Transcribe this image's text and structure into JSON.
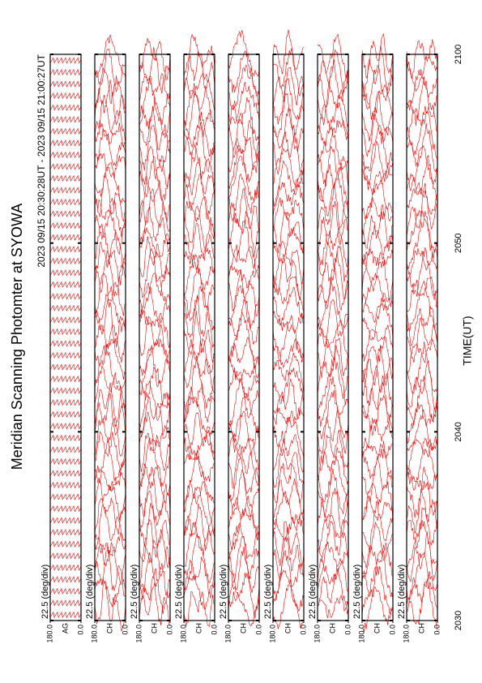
{
  "chart_data": {
    "type": "stacked-trace",
    "title": "Meridian Scanning Photomter at SYOWA",
    "subtitle": "2023 09/15 20:30:28UT - 2023 09/15 21:00:27UT",
    "x_label": "TIME(UT)",
    "xlim": [
      30,
      60
    ],
    "xticks": [
      {
        "value": 30,
        "label": "2030"
      },
      {
        "value": 40,
        "label": "2040"
      },
      {
        "value": 50,
        "label": "2050"
      },
      {
        "value": 60,
        "label": "2100"
      }
    ],
    "color": "#ff0000",
    "panels": [
      {
        "channel": "AG",
        "scale": "22.5 (deg/div)",
        "ylim": [
          0,
          180
        ],
        "yticks": [
          {
            "value": 0,
            "label": "0.0"
          },
          {
            "value": 180,
            "label": "180.0"
          }
        ]
      },
      {
        "channel": "CH",
        "scale": "22.5 (deg/div)",
        "ylim": [
          0,
          180
        ],
        "yticks": [
          {
            "value": 0,
            "label": "0.0"
          },
          {
            "value": 180,
            "label": "180.0"
          }
        ]
      },
      {
        "channel": "CH",
        "scale": "22.5 (deg/div)",
        "ylim": [
          0,
          180
        ],
        "yticks": [
          {
            "value": 0,
            "label": "0.0"
          },
          {
            "value": 180,
            "label": "180.0"
          }
        ]
      },
      {
        "channel": "CH",
        "scale": "22.5 (deg/div)",
        "ylim": [
          0,
          180
        ],
        "yticks": [
          {
            "value": 0,
            "label": "0.0"
          },
          {
            "value": 180,
            "label": "180.0"
          }
        ]
      },
      {
        "channel": "CH",
        "scale": "22.5 (deg/div)",
        "ylim": [
          0,
          180
        ],
        "yticks": [
          {
            "value": 0,
            "label": "0.0"
          },
          {
            "value": 180,
            "label": "180.0"
          }
        ]
      },
      {
        "channel": "CH",
        "scale": "22.5 (deg/div)",
        "ylim": [
          0,
          180
        ],
        "yticks": [
          {
            "value": 0,
            "label": "0.0"
          },
          {
            "value": 180,
            "label": "180.0"
          }
        ]
      },
      {
        "channel": "CH",
        "scale": "22.5 (deg/div)",
        "ylim": [
          0,
          180
        ],
        "yticks": [
          {
            "value": 0,
            "label": "0.0"
          },
          {
            "value": 180,
            "label": "180.0"
          }
        ]
      },
      {
        "channel": "CH",
        "scale": "22.5 (deg/div)",
        "ylim": [
          0,
          180
        ],
        "yticks": [
          {
            "value": 0,
            "label": "0.0"
          },
          {
            "value": 180,
            "label": "180.0"
          }
        ]
      },
      {
        "channel": "CH",
        "scale": "22.5 (deg/div)",
        "ylim": [
          0,
          180
        ],
        "yticks": [
          {
            "value": 0,
            "label": "0.0"
          },
          {
            "value": 180,
            "label": "180.0"
          }
        ]
      }
    ]
  }
}
